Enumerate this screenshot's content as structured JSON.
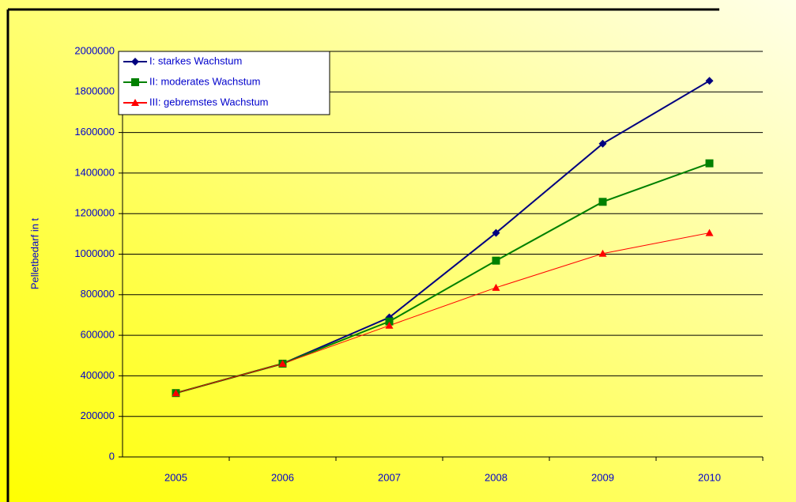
{
  "chart_data": {
    "type": "line",
    "y_label": "Pelletbedarf in t",
    "categories": [
      "2005",
      "2006",
      "2007",
      "2008",
      "2009",
      "2010"
    ],
    "series": [
      {
        "name": "I: starkes Wachstum",
        "color": "#000080",
        "marker": "diamond",
        "values": [
          315000,
          460000,
          688000,
          1105000,
          1545000,
          1855000
        ]
      },
      {
        "name": "II: moderates Wachstum",
        "color": "#008000",
        "marker": "square",
        "values": [
          315000,
          460000,
          668000,
          968000,
          1258000,
          1448000
        ]
      },
      {
        "name": "III: gebremstes Wachstum",
        "color": "#ff0000",
        "marker": "triangle",
        "values": [
          315000,
          460000,
          648000,
          835000,
          1003000,
          1105000
        ]
      }
    ],
    "ylim": [
      0,
      2000000
    ],
    "yticks": [
      0,
      200000,
      400000,
      600000,
      800000,
      1000000,
      1200000,
      1400000,
      1600000,
      1800000,
      2000000
    ],
    "grid": true,
    "legend": "top-left"
  }
}
